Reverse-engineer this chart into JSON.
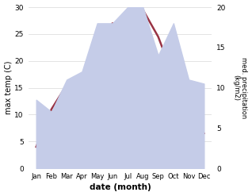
{
  "months": [
    "Jan",
    "Feb",
    "Mar",
    "Apr",
    "May",
    "Jun",
    "Jul",
    "Aug",
    "Sep",
    "Oct",
    "Nov",
    "Dec"
  ],
  "temp_max": [
    4.0,
    11.0,
    15.5,
    15.0,
    21.5,
    27.0,
    25.0,
    29.5,
    24.5,
    17.0,
    11.5,
    6.5
  ],
  "precip": [
    8.5,
    7.0,
    11.0,
    12.0,
    18.0,
    18.0,
    20.0,
    20.0,
    14.0,
    18.0,
    11.0,
    10.5
  ],
  "temp_color": "#993344",
  "precip_fill_color": "#c5cce8",
  "precip_edge_color": "#aab4d4",
  "temp_ylim": [
    0,
    30
  ],
  "precip_ylim": [
    0,
    20
  ],
  "xlabel": "date (month)",
  "ylabel_left": "max temp (C)",
  "ylabel_right": "med. precipitation\n(kg/m2)",
  "bg_color": "#ffffff",
  "grid_color": "#d8d8d8",
  "temp_linewidth": 1.8
}
